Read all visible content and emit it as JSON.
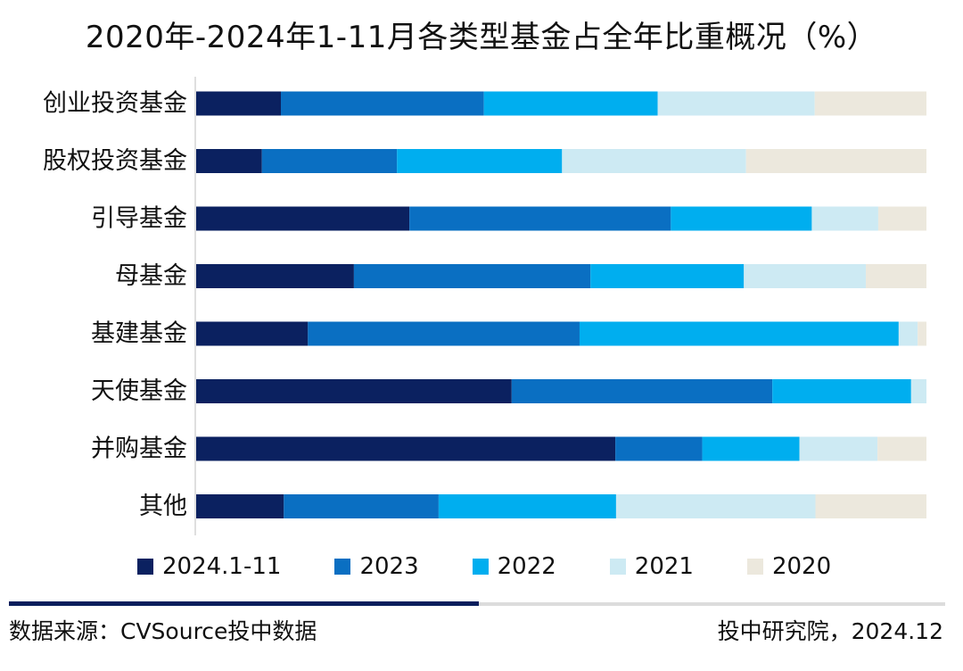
{
  "chart_data": {
    "type": "bar",
    "orientation": "horizontal",
    "stacked": true,
    "title": "2020年-2024年1-11月各类型基金占全年比重概况（%）",
    "categories": [
      "创业投资基金",
      "股权投资基金",
      "引导基金",
      "母基金",
      "基建基金",
      "天使基金",
      "并购基金",
      "其他"
    ],
    "series": [
      {
        "name": "2024.1-11",
        "color": "#0b2160",
        "values": [
          11.6,
          9.0,
          29.2,
          21.6,
          15.3,
          43.2,
          57.4,
          12.0
        ]
      },
      {
        "name": "2023",
        "color": "#0a6fc2",
        "values": [
          27.8,
          18.5,
          35.8,
          32.4,
          37.2,
          35.7,
          11.9,
          21.2
        ]
      },
      {
        "name": "2022",
        "color": "#00aeef",
        "values": [
          23.8,
          22.6,
          19.3,
          21.0,
          43.7,
          19.0,
          13.3,
          24.3
        ]
      },
      {
        "name": "2021",
        "color": "#cdeaf3",
        "values": [
          21.5,
          25.2,
          9.1,
          16.7,
          2.6,
          2.1,
          10.7,
          27.3
        ]
      },
      {
        "name": "2020",
        "color": "#ece8dd",
        "values": [
          15.3,
          24.7,
          6.6,
          8.3,
          1.2,
          0.0,
          6.7,
          15.2
        ]
      }
    ],
    "xlim": [
      0,
      100
    ],
    "grid": false,
    "legend_position": "bottom"
  },
  "footer": {
    "source": "数据来源：CVSource投中数据",
    "credit": "投中研究院，2024.12"
  }
}
